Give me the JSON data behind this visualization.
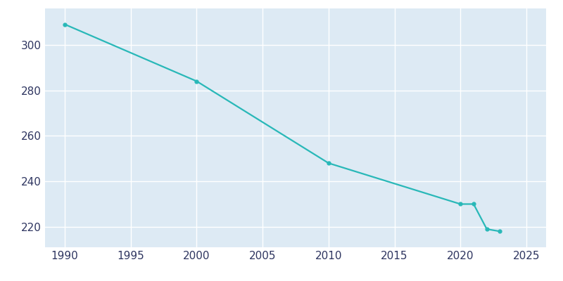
{
  "years": [
    1990,
    2000,
    2010,
    2020,
    2021,
    2022,
    2023
  ],
  "population": [
    309,
    284,
    248,
    230,
    230,
    219,
    218
  ],
  "line_color": "#29B8B8",
  "marker": "o",
  "marker_size": 3.5,
  "ax_bg_color": "#DDEAF4",
  "fig_bg_color": "#FFFFFF",
  "grid_color": "#FFFFFF",
  "tick_label_color": "#2E3560",
  "xlim": [
    1988.5,
    2026.5
  ],
  "ylim": [
    211,
    316
  ],
  "xticks": [
    1990,
    1995,
    2000,
    2005,
    2010,
    2015,
    2020,
    2025
  ],
  "yticks": [
    220,
    240,
    260,
    280,
    300
  ],
  "linewidth": 1.6,
  "tick_fontsize": 11
}
